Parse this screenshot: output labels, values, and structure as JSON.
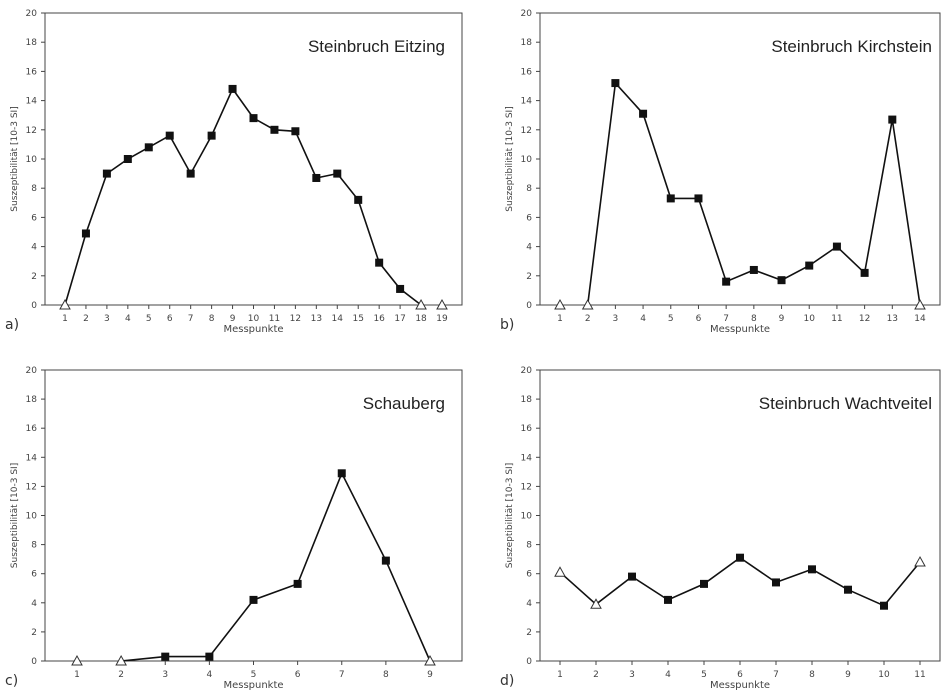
{
  "chart_data": [
    {
      "id": "a",
      "type": "line",
      "panel_label": "a)",
      "title": "Steinbruch Eitzing",
      "xlabel": "Messpunkte",
      "ylabel": "Suszeptibilität [10-3 SI]",
      "x": [
        1,
        2,
        3,
        4,
        5,
        6,
        7,
        8,
        9,
        10,
        11,
        12,
        13,
        14,
        15,
        16,
        17,
        18,
        19
      ],
      "values": [
        0,
        4.9,
        9.0,
        10.0,
        10.8,
        11.6,
        9.0,
        11.6,
        14.8,
        12.8,
        12.0,
        11.9,
        8.7,
        9.0,
        7.2,
        2.9,
        1.1,
        0,
        0
      ],
      "markers": [
        "open-triangle",
        "square",
        "square",
        "square",
        "square",
        "square",
        "square",
        "square",
        "square",
        "square",
        "square",
        "square",
        "square",
        "square",
        "square",
        "square",
        "square",
        "open-triangle",
        "open-triangle"
      ],
      "line_until_index": 17,
      "ylim": [
        0,
        20
      ],
      "yticks": [
        0,
        2,
        4,
        6,
        8,
        10,
        12,
        14,
        16,
        18,
        20
      ]
    },
    {
      "id": "b",
      "type": "line",
      "panel_label": "b)",
      "title": "Steinbruch Kirchstein",
      "xlabel": "Messpunkte",
      "ylabel": "Suszeptibilität [10-3 SI]",
      "x": [
        1,
        2,
        3,
        4,
        5,
        6,
        7,
        8,
        9,
        10,
        11,
        12,
        13,
        14
      ],
      "values": [
        0,
        0,
        15.2,
        13.1,
        7.3,
        7.3,
        1.6,
        2.4,
        1.7,
        2.7,
        4.0,
        2.2,
        12.7,
        0
      ],
      "markers": [
        "open-triangle",
        "open-triangle",
        "square",
        "square",
        "square",
        "square",
        "square",
        "square",
        "square",
        "square",
        "square",
        "square",
        "square",
        "open-triangle"
      ],
      "line_from_index": 1,
      "ylim": [
        0,
        20
      ],
      "yticks": [
        0,
        2,
        4,
        6,
        8,
        10,
        12,
        14,
        16,
        18,
        20
      ]
    },
    {
      "id": "c",
      "type": "line",
      "panel_label": "c)",
      "title": "Schauberg",
      "xlabel": "Messpunkte",
      "ylabel": "Suszeptibilität [10-3 SI]",
      "x": [
        1,
        2,
        3,
        4,
        5,
        6,
        7,
        8,
        9
      ],
      "values": [
        0,
        0,
        0.3,
        0.3,
        4.2,
        5.3,
        12.9,
        6.9,
        0
      ],
      "markers": [
        "open-triangle",
        "open-triangle",
        "square",
        "square",
        "square",
        "square",
        "square",
        "square",
        "open-triangle"
      ],
      "line_from_index": 1,
      "ylim": [
        0,
        20
      ],
      "yticks": [
        0,
        2,
        4,
        6,
        8,
        10,
        12,
        14,
        16,
        18,
        20
      ]
    },
    {
      "id": "d",
      "type": "line",
      "panel_label": "d)",
      "title": "Steinbruch Wachtveitel",
      "xlabel": "Messpunkte",
      "ylabel": "Suszeptibilität [10-3 SI]",
      "x": [
        1,
        2,
        3,
        4,
        5,
        6,
        7,
        8,
        9,
        10,
        11
      ],
      "values": [
        6.1,
        3.9,
        5.8,
        4.2,
        5.3,
        7.1,
        5.4,
        6.3,
        4.9,
        3.8,
        6.8
      ],
      "markers": [
        "open-triangle",
        "open-triangle",
        "square",
        "square",
        "square",
        "square",
        "square",
        "square",
        "square",
        "square",
        "open-triangle"
      ],
      "ylim": [
        0,
        20
      ],
      "yticks": [
        0,
        2,
        4,
        6,
        8,
        10,
        12,
        14,
        16,
        18,
        20
      ]
    }
  ]
}
